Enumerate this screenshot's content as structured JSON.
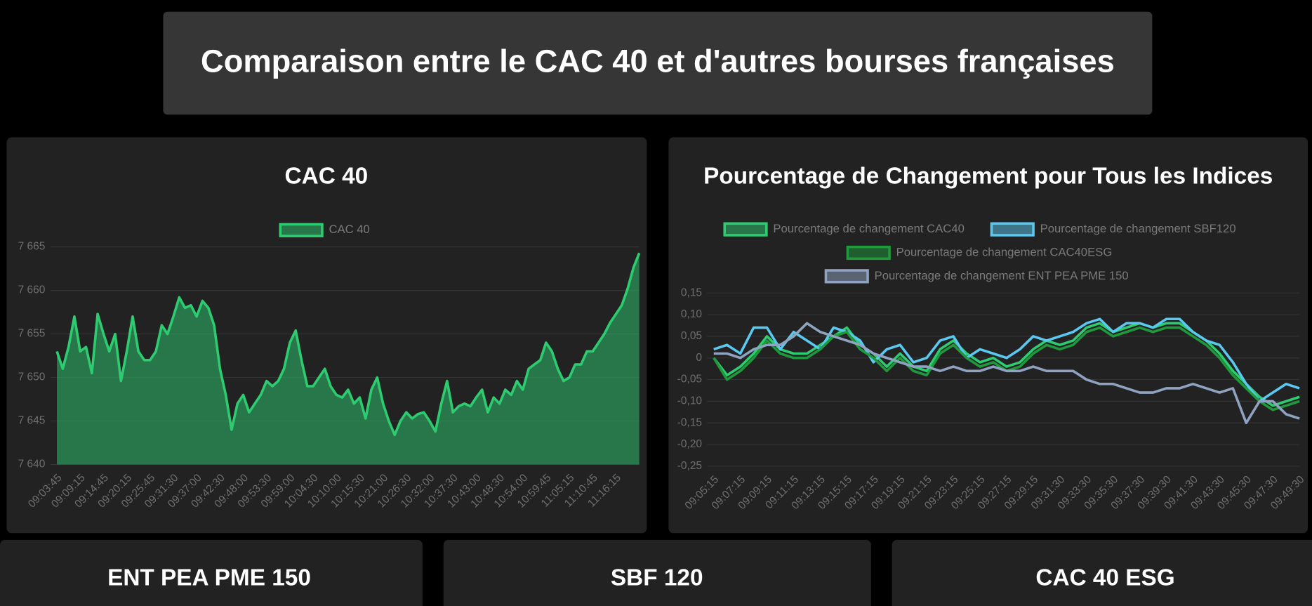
{
  "header": {
    "title": "Comparaison entre le CAC 40 et d'autres bourses françaises"
  },
  "chart_data": [
    {
      "type": "line",
      "title": "CAC 40",
      "fill": true,
      "grid": true,
      "legend": "top",
      "categories": [
        "09:03:45",
        null,
        null,
        null,
        "09:09:15",
        null,
        null,
        null,
        "09:14:45",
        null,
        null,
        null,
        "09:20:15",
        null,
        null,
        null,
        "09:25:45",
        null,
        null,
        null,
        "09:31:30",
        null,
        null,
        null,
        "09:37:00",
        null,
        null,
        null,
        "09:42:30",
        null,
        null,
        null,
        "09:48:00",
        null,
        null,
        null,
        "09:53:30",
        null,
        null,
        null,
        "09:59:00",
        null,
        null,
        null,
        "10:04:30",
        null,
        null,
        null,
        "10:10:00",
        null,
        null,
        null,
        "10:15:30",
        null,
        null,
        null,
        "10:21:00",
        null,
        null,
        null,
        "10:26:30",
        null,
        null,
        null,
        "10:32:00",
        null,
        null,
        null,
        "10:37:30",
        null,
        null,
        null,
        "10:43:00",
        null,
        null,
        null,
        "10:48:30",
        null,
        null,
        null,
        "10:54:00",
        null,
        null,
        null,
        "10:59:45",
        null,
        null,
        null,
        "11:05:15",
        null,
        null,
        null,
        "11:10:45",
        null,
        null,
        null,
        "11:16:15",
        null,
        null,
        null,
        null
      ],
      "series": [
        {
          "name": "CAC 40",
          "color": "#2ecc71",
          "values": [
            7653,
            7651,
            7653.5,
            7657,
            7653,
            7653.5,
            7650.5,
            7657.3,
            7655,
            7653,
            7655,
            7649.6,
            7653,
            7657,
            7653,
            7652,
            7652,
            7653,
            7656,
            7655,
            7657,
            7659.2,
            7658,
            7658.3,
            7657,
            7658.8,
            7658,
            7656,
            7651,
            7648,
            7644,
            7647,
            7648,
            7646,
            7647,
            7648,
            7649.6,
            7649,
            7649.6,
            7651,
            7654,
            7655.4,
            7652,
            7649,
            7649,
            7650,
            7651,
            7649,
            7648,
            7647.7,
            7648.6,
            7647,
            7647.7,
            7645.3,
            7648.6,
            7650,
            7647,
            7645,
            7643.4,
            7645,
            7646,
            7645.3,
            7645.8,
            7646,
            7645,
            7643.8,
            7647,
            7649.6,
            7646,
            7646.7,
            7647,
            7646.7,
            7647.7,
            7648.6,
            7646,
            7647.7,
            7647,
            7648.6,
            7648,
            7649.6,
            7648.6,
            7651,
            7651.5,
            7652,
            7654,
            7653,
            7651,
            7649.6,
            7650,
            7651.5,
            7651.5,
            7653,
            7653,
            7654,
            7655,
            7656.3,
            7657.3,
            7658.3,
            7660.2,
            7662.6,
            7664.3
          ]
        }
      ],
      "ylim": [
        7640,
        7665
      ],
      "yticks": [
        {
          "value": 7640,
          "label": "7 640"
        },
        {
          "value": 7645,
          "label": "7 645"
        },
        {
          "value": 7650,
          "label": "7 650"
        },
        {
          "value": 7655,
          "label": "7 655"
        },
        {
          "value": 7660,
          "label": "7 660"
        },
        {
          "value": 7665,
          "label": "7 665"
        }
      ]
    },
    {
      "type": "line",
      "title": "Pourcentage de Changement pour Tous les Indices",
      "fill": false,
      "grid": true,
      "legend": "top",
      "categories": [
        "09:05:15",
        null,
        "09:07:15",
        null,
        "09:09:15",
        null,
        "09:11:15",
        null,
        "09:13:15",
        null,
        "09:15:15",
        null,
        "09:17:15",
        null,
        "09:19:15",
        null,
        "09:21:15",
        null,
        "09:23:15",
        null,
        "09:25:15",
        null,
        "09:27:15",
        null,
        "09:29:15",
        null,
        "09:31:30",
        null,
        "09:33:30",
        null,
        "09:35:30",
        null,
        "09:37:30",
        null,
        "09:39:30",
        null,
        "09:41:30",
        null,
        "09:43:30",
        null,
        "09:45:30",
        null,
        "09:47:30",
        null,
        "09:49:30"
      ],
      "series": [
        {
          "name": "Pourcentage de changement CAC40",
          "color": "#2ecc71",
          "values": [
            0,
            -0.04,
            -0.02,
            0.01,
            0.05,
            0.02,
            0.01,
            0.01,
            0.03,
            0.05,
            0.07,
            0.03,
            0.01,
            -0.02,
            0.01,
            -0.02,
            -0.03,
            0.02,
            0.04,
            0.01,
            -0.01,
            0,
            -0.02,
            -0.01,
            0.02,
            0.04,
            0.03,
            0.04,
            0.07,
            0.08,
            0.06,
            0.07,
            0.08,
            0.07,
            0.08,
            0.08,
            0.06,
            0.04,
            0.01,
            -0.03,
            -0.06,
            -0.09,
            -0.11,
            -0.1,
            -0.09
          ]
        },
        {
          "name": "Pourcentage de changement SBF120",
          "color": "#5bc8f0",
          "values": [
            0.02,
            0.03,
            0.01,
            0.07,
            0.07,
            0.02,
            0.06,
            0.04,
            0.02,
            0.07,
            0.06,
            0.04,
            -0.01,
            0.02,
            0.03,
            -0.01,
            0,
            0.04,
            0.05,
            0,
            0.02,
            0.01,
            0,
            0.02,
            0.05,
            0.04,
            0.05,
            0.06,
            0.08,
            0.09,
            0.06,
            0.08,
            0.08,
            0.07,
            0.09,
            0.09,
            0.06,
            0.04,
            0.03,
            -0.01,
            -0.06,
            -0.1,
            -0.08,
            -0.06,
            -0.07
          ]
        },
        {
          "name": "Pourcentage de changement CAC40ESG",
          "color": "#1e9a3c",
          "values": [
            0,
            -0.05,
            -0.03,
            0,
            0.04,
            0.01,
            0,
            0,
            0.02,
            0.05,
            0.06,
            0.02,
            0,
            -0.03,
            0,
            -0.03,
            -0.04,
            0.01,
            0.03,
            0,
            -0.02,
            -0.01,
            -0.03,
            -0.02,
            0.01,
            0.03,
            0.02,
            0.03,
            0.06,
            0.07,
            0.05,
            0.06,
            0.07,
            0.06,
            0.07,
            0.07,
            0.05,
            0.03,
            0,
            -0.04,
            -0.07,
            -0.1,
            -0.12,
            -0.11,
            -0.1
          ]
        },
        {
          "name": "Pourcentage de changement ENT PEA PME 150",
          "color": "#8fa3c0",
          "values": [
            0.01,
            0.01,
            0,
            0.02,
            0.03,
            0.03,
            0.05,
            0.08,
            0.06,
            0.05,
            0.04,
            0.03,
            0.01,
            0,
            -0.01,
            -0.02,
            -0.02,
            -0.03,
            -0.02,
            -0.03,
            -0.03,
            -0.02,
            -0.03,
            -0.03,
            -0.02,
            -0.03,
            -0.03,
            -0.03,
            -0.05,
            -0.06,
            -0.06,
            -0.07,
            -0.08,
            -0.08,
            -0.07,
            -0.07,
            -0.06,
            -0.07,
            -0.08,
            -0.07,
            -0.15,
            -0.1,
            -0.1,
            -0.13,
            -0.14
          ]
        }
      ],
      "ylim": [
        -0.25,
        0.15
      ],
      "yticks": [
        {
          "value": -0.25,
          "label": "-0,25"
        },
        {
          "value": -0.2,
          "label": "-0,20"
        },
        {
          "value": -0.15,
          "label": "-0,15"
        },
        {
          "value": -0.1,
          "label": "-0,10"
        },
        {
          "value": -0.05,
          "label": "-0,05"
        },
        0,
        {
          "value": 0.05,
          "label": "0,05"
        },
        {
          "value": 0.1,
          "label": "0,10"
        },
        {
          "value": 0.15,
          "label": "0,15"
        }
      ]
    }
  ],
  "cards": [
    {
      "title": "ENT PEA PME 150"
    },
    {
      "title": "SBF 120"
    },
    {
      "title": "CAC 40 ESG"
    }
  ]
}
